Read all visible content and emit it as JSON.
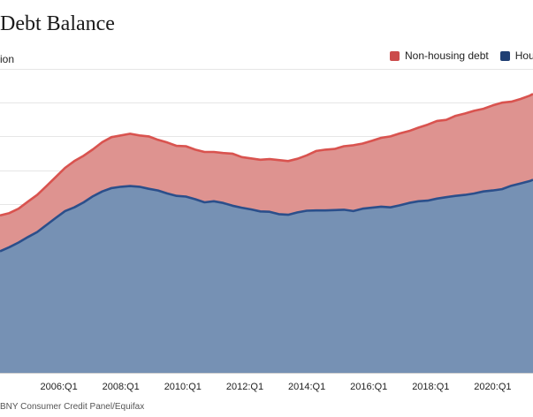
{
  "title": "Debt Balance",
  "unit_label": "ion",
  "source": "BNY Consumer Credit Panel/Equifax",
  "colors": {
    "non_housing": "#d9534f",
    "non_housing_fill": "#de9390",
    "housing": "#2b4f8b",
    "housing_fill": "#7691b4",
    "grid": "#e6e6e6"
  },
  "legend": [
    {
      "label": "Non-housing debt",
      "color": "#cb4b4b"
    },
    {
      "label": "Hou",
      "color": "#1f3f73"
    }
  ],
  "chart_data": {
    "type": "area",
    "stacked": true,
    "x": [
      2004.1,
      2004.4,
      2004.7,
      2005.0,
      2005.3,
      2005.6,
      2005.9,
      2006.2,
      2006.5,
      2006.8,
      2007.1,
      2007.4,
      2007.7,
      2008.0,
      2008.3,
      2008.6,
      2008.9,
      2009.2,
      2009.5,
      2009.8,
      2010.1,
      2010.4,
      2010.7,
      2011.0,
      2011.3,
      2011.6,
      2011.9,
      2012.2,
      2012.5,
      2012.8,
      2013.1,
      2013.4,
      2013.7,
      2014.0,
      2014.3,
      2014.6,
      2014.9,
      2015.2,
      2015.5,
      2015.8,
      2016.1,
      2016.4,
      2016.7,
      2017.0,
      2017.3,
      2017.6,
      2017.9,
      2018.2,
      2018.5,
      2018.8,
      2019.1,
      2019.4,
      2019.7,
      2020.0,
      2020.3,
      2020.6,
      2020.9,
      2021.2,
      2021.3
    ],
    "series": [
      {
        "name": "Housing",
        "values": [
          36.0,
          37.2,
          38.6,
          40.2,
          41.7,
          43.8,
          45.9,
          47.9,
          49.0,
          50.5,
          52.3,
          53.7,
          54.7,
          55.1,
          55.3,
          55.1,
          54.5,
          54.0,
          53.1,
          52.4,
          52.2,
          51.4,
          50.5,
          50.8,
          50.3,
          49.5,
          48.9,
          48.4,
          47.8,
          47.7,
          47.0,
          46.8,
          47.5,
          48.0,
          48.1,
          48.1,
          48.2,
          48.3,
          47.9,
          48.6,
          48.9,
          49.2,
          49.0,
          49.6,
          50.3,
          50.8,
          51.0,
          51.6,
          52.0,
          52.4,
          52.7,
          53.1,
          53.7,
          54.0,
          54.4,
          55.4,
          56.1,
          56.8,
          57.2
        ]
      },
      {
        "name": "Non-housing debt",
        "values": [
          10.6,
          10.1,
          10.0,
          10.5,
          11.0,
          11.5,
          12.1,
          12.8,
          13.7,
          13.8,
          13.9,
          14.6,
          15.1,
          15.2,
          15.5,
          15.2,
          15.5,
          15.0,
          15.1,
          14.8,
          14.9,
          14.7,
          14.9,
          14.6,
          14.8,
          15.4,
          15.0,
          15.1,
          15.3,
          15.6,
          16.0,
          15.9,
          15.9,
          16.4,
          17.6,
          18.0,
          18.1,
          18.8,
          19.5,
          19.3,
          19.8,
          20.4,
          21.0,
          21.3,
          21.3,
          21.8,
          22.5,
          23.0,
          22.9,
          23.7,
          24.1,
          24.5,
          24.5,
          25.2,
          25.6,
          24.9,
          25.0,
          25.3,
          25.4
        ]
      }
    ],
    "x_ticks": [
      {
        "value": 2006.0,
        "label": "2006:Q1"
      },
      {
        "value": 2008.0,
        "label": "2008:Q1"
      },
      {
        "value": 2010.0,
        "label": "2010:Q1"
      },
      {
        "value": 2012.0,
        "label": "2012:Q1"
      },
      {
        "value": 2014.0,
        "label": "2014:Q1"
      },
      {
        "value": 2016.0,
        "label": "2016:Q1"
      },
      {
        "value": 2018.0,
        "label": "2018:Q1"
      },
      {
        "value": 2020.0,
        "label": "2020:Q1"
      }
    ],
    "x_range": [
      2004.1,
      2021.3
    ],
    "ylim": [
      0,
      90
    ],
    "y_grid_step": 10,
    "grid": true,
    "legend_position": "top-right"
  }
}
